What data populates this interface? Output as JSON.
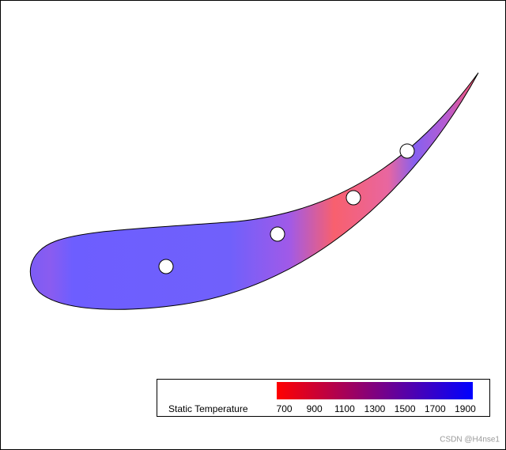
{
  "chart_data": {
    "type": "contour",
    "colorbar": {
      "label": "Static Temperature",
      "clim": [
        650,
        1950
      ],
      "ticks": [
        700,
        900,
        1100,
        1300,
        1500,
        1700,
        1900
      ],
      "colors": [
        "#ff0000",
        "#0000ff"
      ]
    }
  },
  "watermark": "CSDN @H4nse1"
}
